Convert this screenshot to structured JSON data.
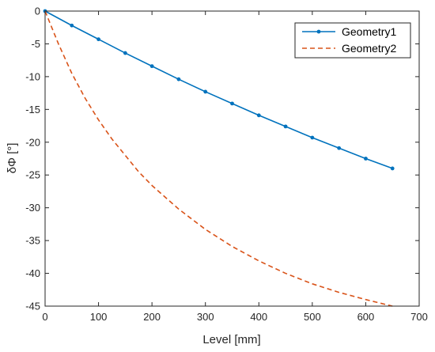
{
  "chart_data": {
    "type": "line",
    "xlabel": "Level [mm]",
    "ylabel": "δΦ [°]",
    "xlim": [
      0,
      700
    ],
    "ylim": [
      -45,
      0
    ],
    "xticks": [
      0,
      100,
      200,
      300,
      400,
      500,
      600,
      700
    ],
    "yticks": [
      0,
      -5,
      -10,
      -15,
      -20,
      -25,
      -30,
      -35,
      -40,
      -45
    ],
    "xtick_labels": [
      "0",
      "100",
      "200",
      "300",
      "400",
      "500",
      "600",
      "700"
    ],
    "ytick_labels": [
      "0",
      "-5",
      "-10",
      "-15",
      "-20",
      "-25",
      "-30",
      "-35",
      "-40",
      "-45"
    ],
    "grid": false,
    "legend_position": "top-right",
    "series": [
      {
        "name": "Geometry1",
        "color": "#0072BD",
        "style": "solid",
        "marker": "dot",
        "x": [
          0,
          50,
          100,
          150,
          200,
          250,
          300,
          350,
          400,
          450,
          500,
          550,
          600,
          650
        ],
        "y": [
          0,
          -2.2,
          -4.3,
          -6.4,
          -8.4,
          -10.4,
          -12.3,
          -14.1,
          -15.9,
          -17.6,
          -19.3,
          -20.9,
          -22.5,
          -24.0
        ]
      },
      {
        "name": "Geometry2",
        "color": "#D95319",
        "style": "dashed",
        "marker": "none",
        "x": [
          0,
          25,
          50,
          75,
          100,
          125,
          150,
          175,
          200,
          250,
          300,
          350,
          400,
          450,
          500,
          550,
          600,
          650
        ],
        "y": [
          0,
          -5.0,
          -9.5,
          -13.3,
          -16.6,
          -19.5,
          -22.0,
          -24.5,
          -26.6,
          -30.2,
          -33.3,
          -35.9,
          -38.1,
          -40.0,
          -41.6,
          -42.9,
          -44.0,
          -45.0
        ]
      }
    ]
  }
}
